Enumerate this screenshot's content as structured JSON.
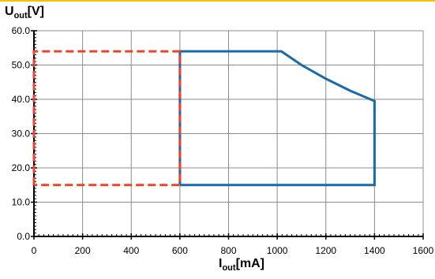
{
  "chart_data": {
    "type": "line",
    "title": "",
    "xlabel": {
      "main": "I",
      "sub": "out",
      "unit": "[mA]"
    },
    "ylabel": {
      "main": "U",
      "sub": "out",
      "unit": "[V]"
    },
    "xlim": [
      0,
      1600
    ],
    "ylim": [
      0,
      60
    ],
    "x_ticks": [
      0,
      200,
      400,
      600,
      800,
      1000,
      1200,
      1400,
      1600
    ],
    "y_ticks": [
      0,
      10,
      20,
      30,
      40,
      50,
      60
    ],
    "x_tick_labels": [
      "0",
      "200",
      "400",
      "600",
      "800",
      "1000",
      "1200",
      "1400",
      "1600"
    ],
    "y_tick_labels": [
      "0.0",
      "10.0",
      "20.0",
      "30.0",
      "40.0",
      "50.0",
      "60.0"
    ],
    "grid": true,
    "series": [
      {
        "color": "#1a6aa8",
        "style": "solid",
        "points": [
          [
            600,
            15
          ],
          [
            600,
            54
          ],
          [
            1017,
            54
          ],
          [
            1100,
            50
          ],
          [
            1200,
            46
          ],
          [
            1300,
            42.5
          ],
          [
            1400,
            39.5
          ],
          [
            1400,
            15
          ],
          [
            600,
            15
          ]
        ]
      },
      {
        "color": "#e8452c",
        "style": "dashed",
        "points": [
          [
            0,
            15
          ],
          [
            0,
            54
          ],
          [
            600,
            54
          ],
          [
            600,
            15
          ],
          [
            0,
            15
          ]
        ]
      }
    ]
  }
}
